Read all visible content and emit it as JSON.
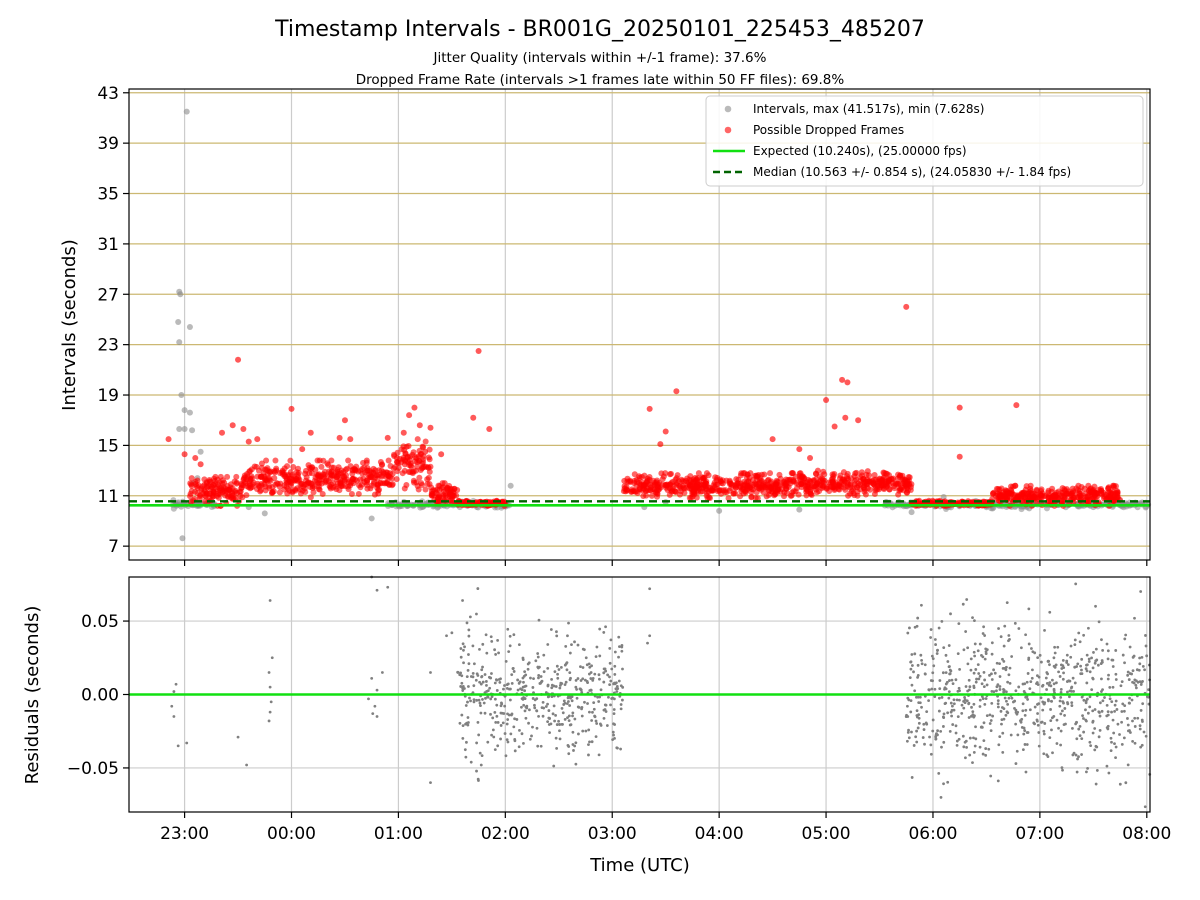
{
  "chart_data": [
    {
      "type": "scatter",
      "panel": "top",
      "title": "Timestamp Intervals - BR001G_20250101_225453_485207",
      "subtitle_1": "Jitter Quality (intervals within +/-1 frame): 37.6%",
      "subtitle_2": "Dropped Frame Rate (intervals >1 frames late within 50 FF files): 69.8%",
      "ylabel": "Intervals (seconds)",
      "x_unit": "hours since 23:00 UTC",
      "xlim": [
        -0.52,
        9.03
      ],
      "ylim": [
        5.9,
        43.3
      ],
      "yticks": [
        7,
        11,
        15,
        19,
        23,
        27,
        31,
        35,
        39,
        43
      ],
      "grid": "on",
      "legend_position": "upper right",
      "legend": [
        {
          "label": "Intervals, max (41.517s), min (7.628s)",
          "kind": "point",
          "color": "#8c8c8c"
        },
        {
          "label": "Possible Dropped Frames",
          "kind": "point",
          "color": "#ff0000"
        },
        {
          "label": "Expected (10.240s), (25.00000 fps)",
          "kind": "line",
          "color": "#11e011"
        },
        {
          "label": "Median (10.563 +/- 0.854 s), (24.05830 +/- 1.84 fps)",
          "kind": "dashed",
          "color": "#006400"
        }
      ],
      "expected_line": 10.24,
      "median_line": 10.563,
      "gray_points": [
        [
          0.02,
          41.5
        ],
        [
          -0.05,
          27.2
        ],
        [
          -0.04,
          27.0
        ],
        [
          -0.06,
          24.8
        ],
        [
          0.05,
          24.4
        ],
        [
          -0.05,
          23.2
        ],
        [
          -0.03,
          19.0
        ],
        [
          0.0,
          17.8
        ],
        [
          0.05,
          17.6
        ],
        [
          -0.05,
          16.3
        ],
        [
          0.0,
          16.3
        ],
        [
          0.07,
          16.2
        ],
        [
          -0.02,
          7.63
        ],
        [
          -0.08,
          10.3
        ],
        [
          0.1,
          10.5
        ],
        [
          0.12,
          12.4
        ],
        [
          0.08,
          12.0
        ],
        [
          0.15,
          14.5
        ],
        [
          0.6,
          10.1
        ],
        [
          0.75,
          9.6
        ],
        [
          1.75,
          9.2
        ],
        [
          3.05,
          11.8
        ],
        [
          4.3,
          10.1
        ],
        [
          4.5,
          10.5
        ],
        [
          5.0,
          9.8
        ],
        [
          5.75,
          9.9
        ],
        [
          6.8,
          9.7
        ],
        [
          7.1,
          10.9
        ],
        [
          7.9,
          10.0
        ],
        [
          8.5,
          10.1
        ]
      ],
      "gray_band": {
        "segments": [
          [
            -0.12,
            0.3
          ],
          [
            1.9,
            3.05
          ],
          [
            6.55,
            9.03
          ]
        ],
        "center": 10.3,
        "spread": 0.25
      },
      "red_points": [
        [
          -0.15,
          15.5
        ],
        [
          0.0,
          14.3
        ],
        [
          0.1,
          14.0
        ],
        [
          0.15,
          13.5
        ],
        [
          0.5,
          21.8
        ],
        [
          0.45,
          16.6
        ],
        [
          0.35,
          16.0
        ],
        [
          0.55,
          16.3
        ],
        [
          0.6,
          15.3
        ],
        [
          0.68,
          15.5
        ],
        [
          1.0,
          17.9
        ],
        [
          1.1,
          14.7
        ],
        [
          1.18,
          16.0
        ],
        [
          1.5,
          17.0
        ],
        [
          1.45,
          15.6
        ],
        [
          1.55,
          15.5
        ],
        [
          1.9,
          15.6
        ],
        [
          2.05,
          16.0
        ],
        [
          2.1,
          17.4
        ],
        [
          2.2,
          16.6
        ],
        [
          2.15,
          18.0
        ],
        [
          2.3,
          16.4
        ],
        [
          2.25,
          14.5
        ],
        [
          2.4,
          14.3
        ],
        [
          2.7,
          17.2
        ],
        [
          2.75,
          22.5
        ],
        [
          2.85,
          16.3
        ],
        [
          4.35,
          17.9
        ],
        [
          4.45,
          15.1
        ],
        [
          4.5,
          16.1
        ],
        [
          4.6,
          19.3
        ],
        [
          5.5,
          15.5
        ],
        [
          5.75,
          14.7
        ],
        [
          5.85,
          14.0
        ],
        [
          6.0,
          18.6
        ],
        [
          6.08,
          16.5
        ],
        [
          6.15,
          20.2
        ],
        [
          6.18,
          17.2
        ],
        [
          6.2,
          20.0
        ],
        [
          6.3,
          17.0
        ],
        [
          6.75,
          26.0
        ],
        [
          7.25,
          18.0
        ],
        [
          7.25,
          14.1
        ],
        [
          7.78,
          18.2
        ]
      ],
      "red_clusters": [
        {
          "x": [
            0.05,
            0.55
          ],
          "y": [
            10.2,
            12.5
          ]
        },
        {
          "x": [
            0.55,
            1.3
          ],
          "y": [
            10.8,
            13.8
          ]
        },
        {
          "x": [
            1.3,
            1.95
          ],
          "y": [
            11.0,
            13.8
          ]
        },
        {
          "x": [
            1.95,
            2.3
          ],
          "y": [
            11.5,
            15.5
          ]
        },
        {
          "x": [
            2.3,
            2.55
          ],
          "y": [
            10.3,
            12.0
          ]
        },
        {
          "x": [
            2.55,
            3.0
          ],
          "y": [
            10.2,
            10.6
          ]
        },
        {
          "x": [
            4.1,
            5.9
          ],
          "y": [
            10.8,
            12.8
          ]
        },
        {
          "x": [
            5.9,
            6.8
          ],
          "y": [
            11.0,
            13.0
          ]
        },
        {
          "x": [
            6.8,
            7.55
          ],
          "y": [
            10.2,
            10.6
          ]
        },
        {
          "x": [
            7.55,
            8.75
          ],
          "y": [
            10.2,
            11.8
          ]
        }
      ]
    },
    {
      "type": "scatter",
      "panel": "bottom",
      "xlabel": "Time (UTC)",
      "ylabel": "Residuals (seconds)",
      "xlim": [
        -0.52,
        9.03
      ],
      "ylim": [
        -0.08,
        0.08
      ],
      "yticks": [
        {
          "value": 0.05,
          "label": "0.05"
        },
        {
          "value": 0.0,
          "label": "0.00"
        },
        {
          "value": -0.05,
          "label": "−0.05"
        }
      ],
      "xticks": [
        {
          "value": 0,
          "label": "23:00"
        },
        {
          "value": 1,
          "label": "00:00"
        },
        {
          "value": 2,
          "label": "01:00"
        },
        {
          "value": 3,
          "label": "02:00"
        },
        {
          "value": 4,
          "label": "03:00"
        },
        {
          "value": 5,
          "label": "04:00"
        },
        {
          "value": 6,
          "label": "05:00"
        },
        {
          "value": 7,
          "label": "06:00"
        },
        {
          "value": 8,
          "label": "07:00"
        },
        {
          "value": 9,
          "label": "08:00"
        }
      ],
      "grid": "on",
      "zero_line": 0.0,
      "point_color": "#808080",
      "line_color": "#11e011",
      "sparse_points": [
        [
          -0.08,
          0.007
        ],
        [
          -0.1,
          0.002
        ],
        [
          -0.12,
          -0.008
        ],
        [
          -0.1,
          -0.015
        ],
        [
          -0.06,
          -0.035
        ],
        [
          0.02,
          -0.033
        ],
        [
          0.5,
          -0.029
        ],
        [
          0.58,
          -0.048
        ],
        [
          0.8,
          0.064
        ],
        [
          0.82,
          0.025
        ],
        [
          0.79,
          0.015
        ],
        [
          0.8,
          0.005
        ],
        [
          0.81,
          -0.005
        ],
        [
          0.8,
          -0.012
        ],
        [
          0.79,
          -0.018
        ],
        [
          1.75,
          0.08
        ],
        [
          1.8,
          0.071
        ],
        [
          1.9,
          0.073
        ],
        [
          1.75,
          0.011
        ],
        [
          1.8,
          0.003
        ],
        [
          1.72,
          -0.003
        ],
        [
          1.78,
          -0.008
        ],
        [
          1.76,
          -0.013
        ],
        [
          1.8,
          -0.015
        ],
        [
          1.85,
          0.015
        ],
        [
          2.45,
          0.04
        ],
        [
          2.5,
          0.042
        ],
        [
          2.6,
          0.064
        ],
        [
          2.3,
          0.015
        ],
        [
          2.3,
          -0.06
        ],
        [
          4.35,
          0.072
        ],
        [
          4.35,
          0.04
        ],
        [
          4.33,
          0.035
        ]
      ],
      "dense_segments": [
        {
          "x": [
            2.55,
            4.1
          ],
          "sd": 0.02
        },
        {
          "x": [
            6.75,
            9.03
          ],
          "sd": 0.025
        }
      ]
    }
  ]
}
